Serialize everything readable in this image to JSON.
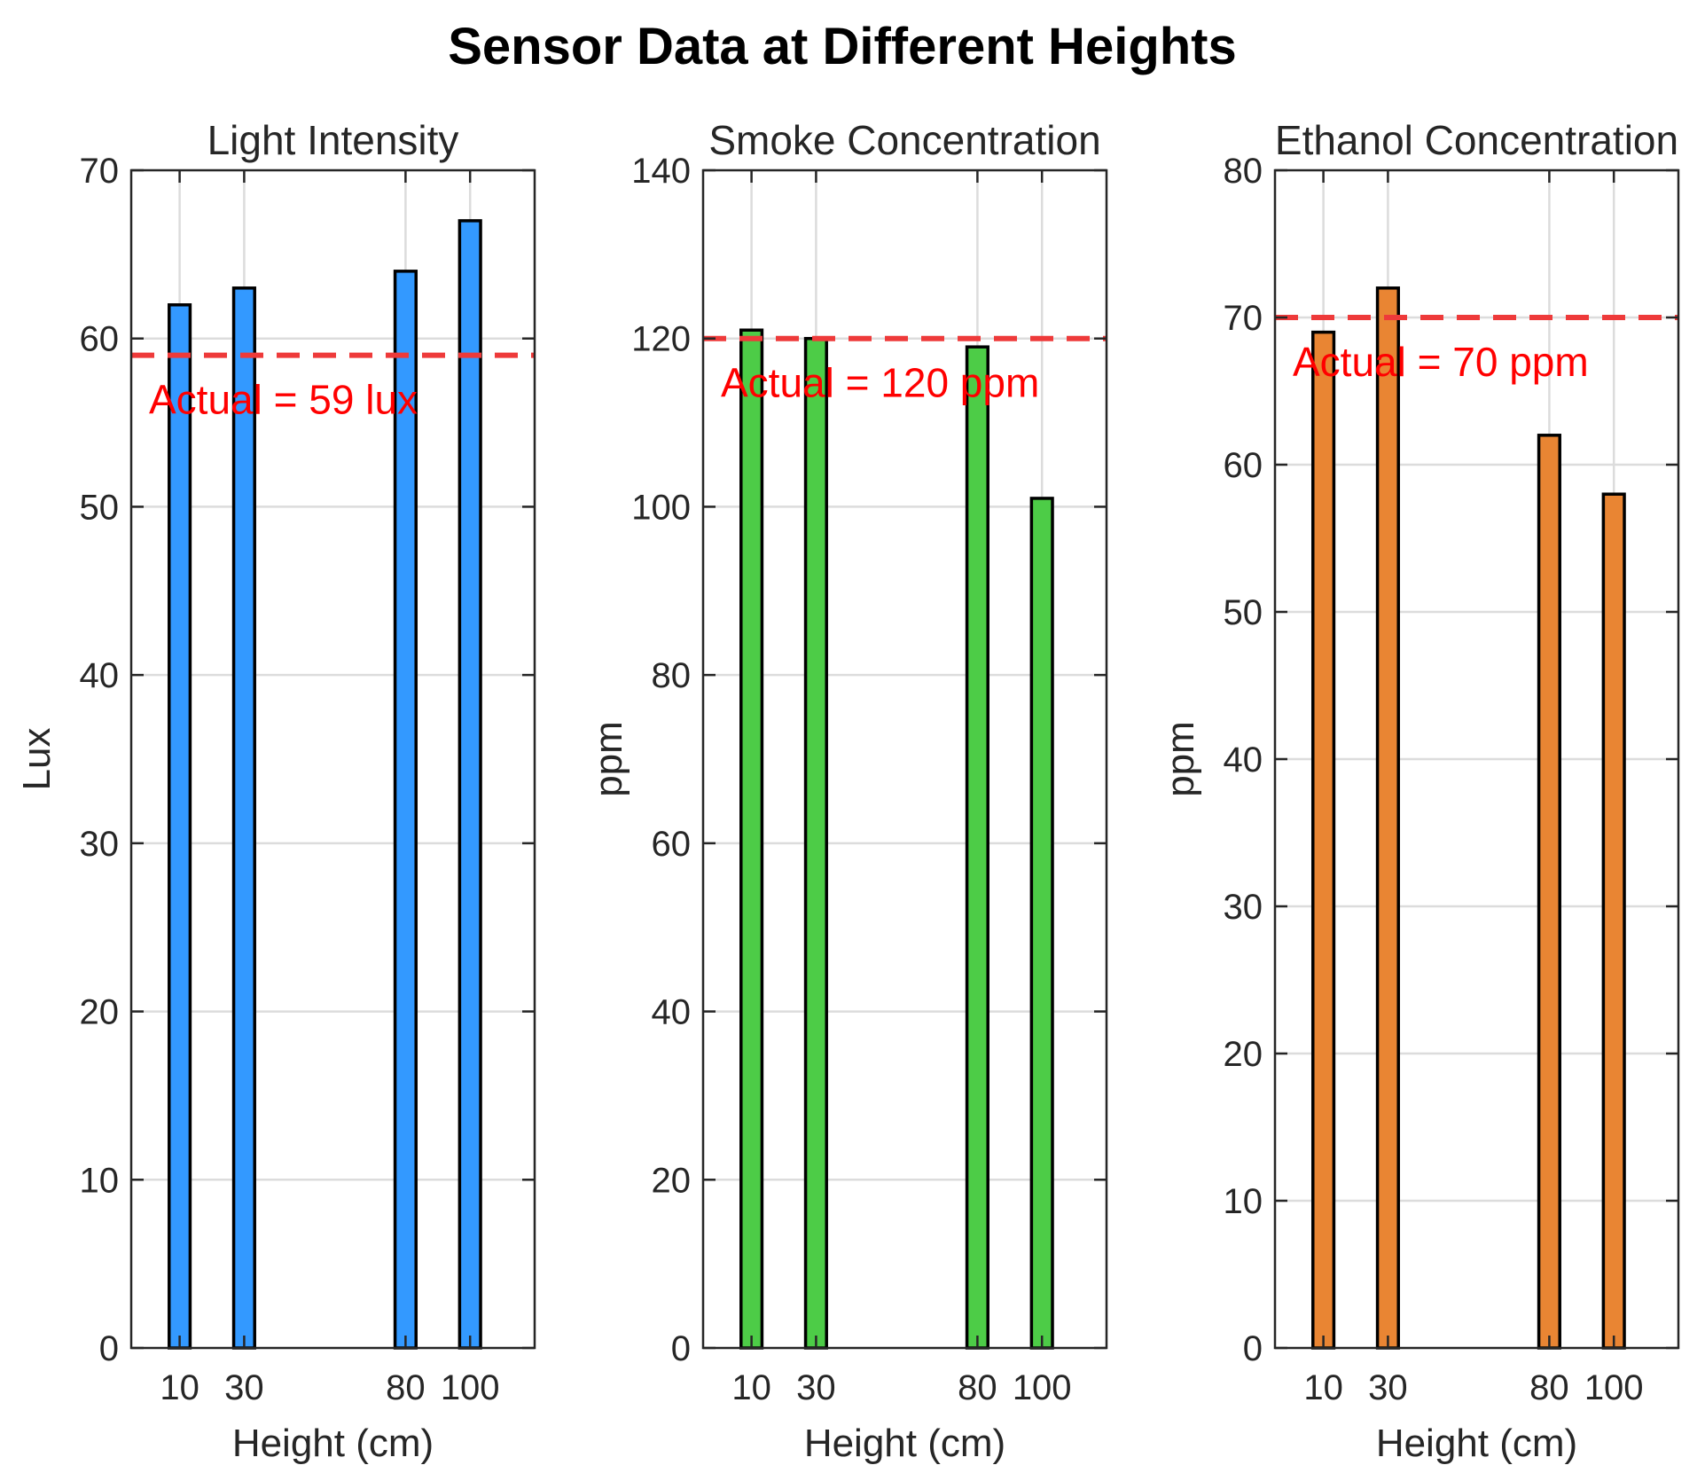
{
  "chart_data": {
    "type": "bar",
    "title": "Sensor Data at Different Heights",
    "subplots": [
      {
        "title": "Light Intensity",
        "xlabel": "Height (cm)",
        "ylabel": "Lux",
        "categories": [
          10,
          30,
          80,
          100
        ],
        "tick_labels": [
          "10",
          "30",
          "80",
          "100"
        ],
        "values": [
          62,
          63,
          64,
          67
        ],
        "xlim": [
          -5,
          120
        ],
        "ylim": [
          0,
          70
        ],
        "yticks": [
          0,
          10,
          20,
          30,
          40,
          50,
          60,
          70
        ],
        "bar_color": "#3399ff",
        "reference": {
          "value": 59,
          "label": "Actual = 59 lux",
          "color": "#ee3a3a",
          "label_color": "#ff0000"
        }
      },
      {
        "title": "Smoke Concentration",
        "xlabel": "Height (cm)",
        "ylabel": "ppm",
        "categories": [
          10,
          30,
          80,
          100
        ],
        "tick_labels": [
          "10",
          "30",
          "80",
          "100"
        ],
        "values": [
          121,
          120,
          119,
          101
        ],
        "xlim": [
          -5,
          120
        ],
        "ylim": [
          0,
          140
        ],
        "yticks": [
          0,
          20,
          40,
          60,
          80,
          100,
          120,
          140
        ],
        "bar_color": "#4dcc47",
        "reference": {
          "value": 120,
          "label": "Actual = 120 ppm",
          "color": "#ee3a3a",
          "label_color": "#ff0000"
        }
      },
      {
        "title": "Ethanol Concentration",
        "xlabel": "Height (cm)",
        "ylabel": "ppm",
        "categories": [
          10,
          30,
          80,
          100
        ],
        "tick_labels": [
          "10",
          "30",
          "80",
          "100"
        ],
        "values": [
          69,
          72,
          62,
          58
        ],
        "xlim": [
          -5,
          120
        ],
        "ylim": [
          0,
          80
        ],
        "yticks": [
          0,
          10,
          20,
          30,
          40,
          50,
          60,
          70,
          80
        ],
        "bar_color": "#e98533",
        "reference": {
          "value": 70,
          "label": "Actual = 70 ppm",
          "color": "#ee3a3a",
          "label_color": "#ff0000"
        }
      }
    ]
  }
}
